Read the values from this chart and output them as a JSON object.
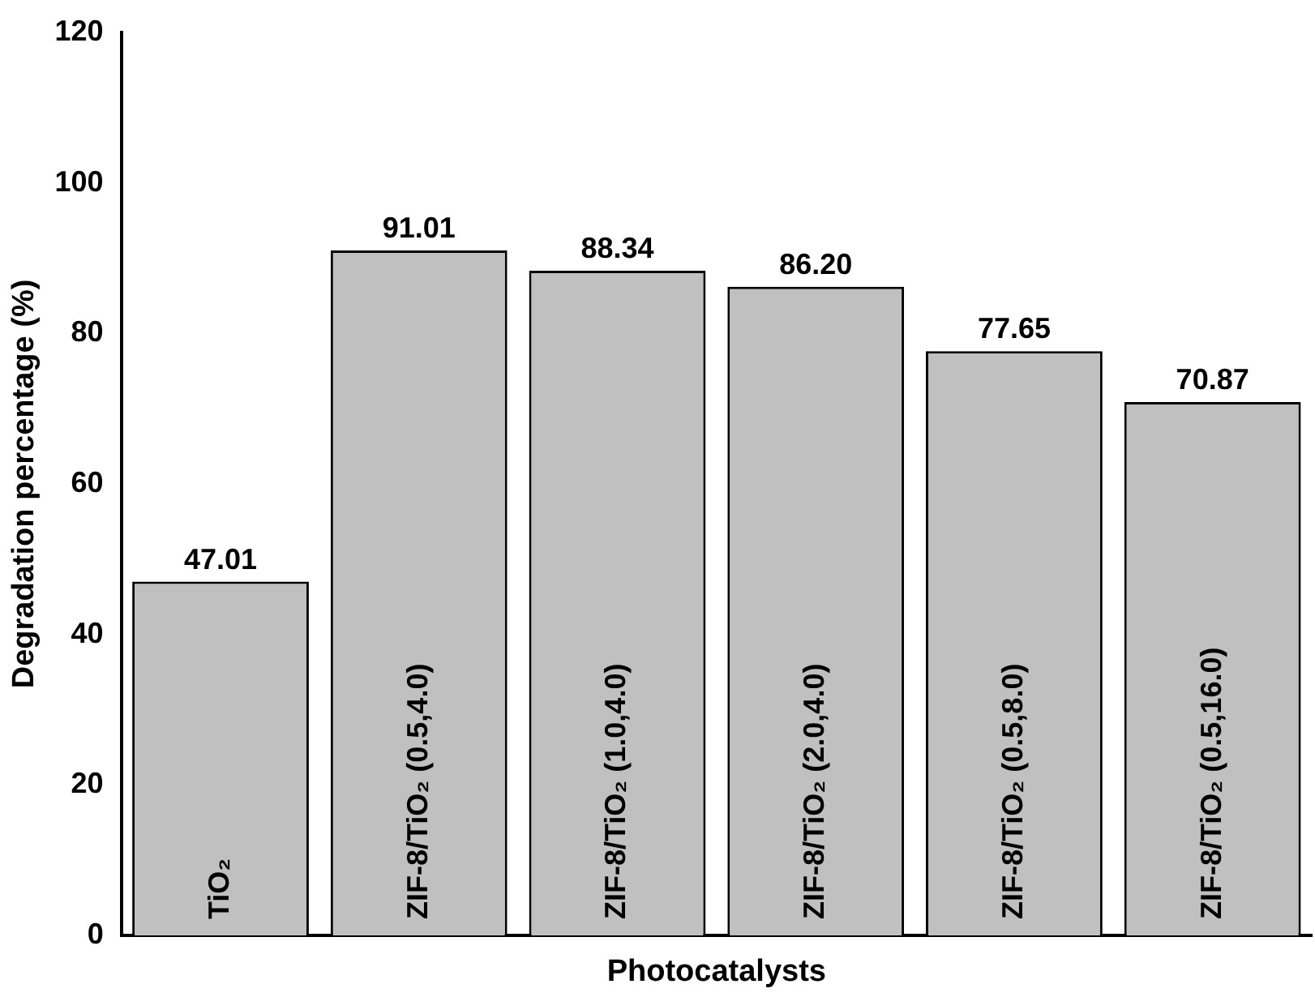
{
  "chart_data": {
    "type": "bar",
    "xlabel": "Photocatalysts",
    "ylabel": "Degradation percentage (%)",
    "categories": [
      "TiO₂",
      "ZIF-8/TiO₂ (0.5,4.0)",
      "ZIF-8/TiO₂ (1.0,4.0)",
      "ZIF-8/TiO₂ (2.0,4.0)",
      "ZIF-8/TiO₂ (0.5,8.0)",
      "ZIF-8/TiO₂ (0.5,16.0)"
    ],
    "values": [
      47.01,
      91.01,
      88.34,
      86.2,
      77.65,
      70.87
    ],
    "value_labels": [
      "47.01",
      "91.01",
      "88.34",
      "86.20",
      "77.65",
      "70.87"
    ],
    "color": "#c0c0c0",
    "ylim": [
      0,
      120
    ],
    "yticks": [
      0,
      20,
      40,
      60,
      80,
      100,
      120
    ],
    "grid": false,
    "legend": false
  }
}
